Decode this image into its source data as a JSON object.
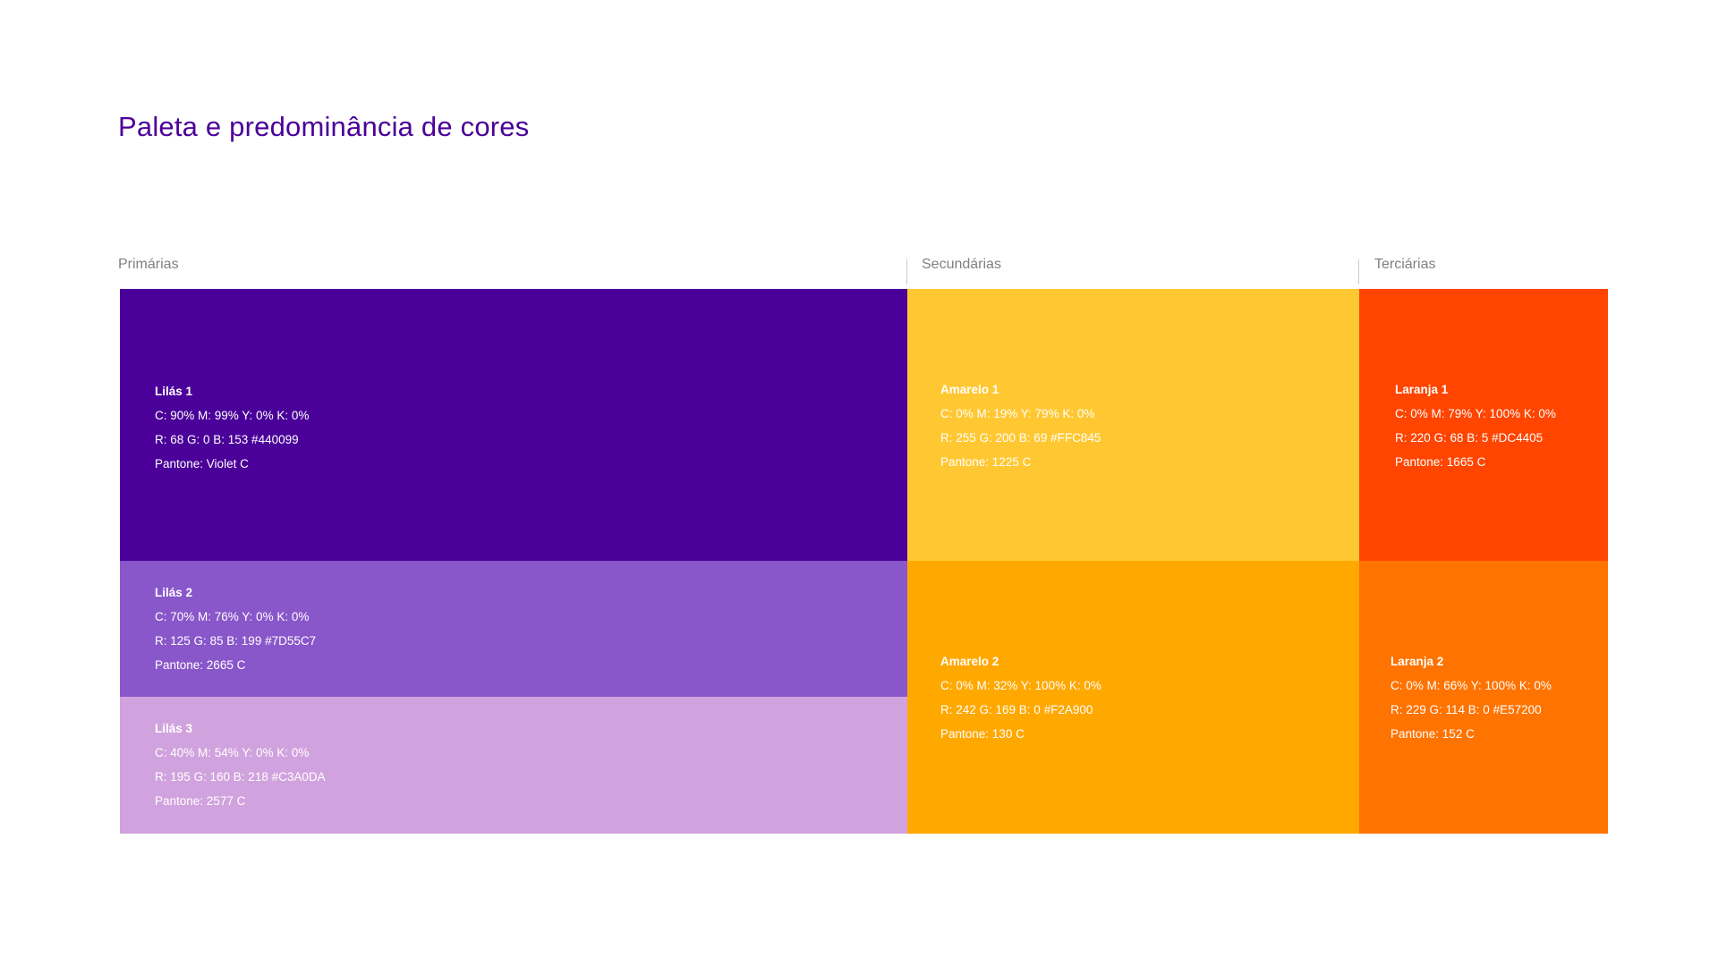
{
  "title": "Paleta e predominância de cores",
  "groups": {
    "primarias": "Primárias",
    "secundarias": "Secundárias",
    "terciarias": "Terciárias"
  },
  "swatches": {
    "lilas1": {
      "color": "#4A0099",
      "text_color": "#ffffff",
      "name": "Lilás 1",
      "cmyk": "C: 90%  M: 99%  Y: 0%  K: 0%",
      "rgb": "R: 68  G: 0  B: 153  #440099",
      "pantone": "Pantone: Violet C"
    },
    "lilas2": {
      "color": "#8957CA",
      "text_color": "#ffffff",
      "name": "Lilás 2",
      "cmyk": "C: 70%  M: 76%  Y: 0%  K: 0%",
      "rgb": "R: 125  G: 85  B: 199  #7D55C7",
      "pantone": "Pantone: 2665 C"
    },
    "lilas3": {
      "color": "#D1A3DE",
      "text_color": "#ffffff",
      "name": "Lilás 3",
      "cmyk": "C: 40%  M: 54%  Y: 0%  K: 0%",
      "rgb": "R: 195  G: 160  B: 218  #C3A0DA",
      "pantone": "Pantone: 2577 C"
    },
    "amarelo1": {
      "color": "#FFC832",
      "text_color": "#ffffff",
      "name": "Amarelo 1",
      "cmyk": "C: 0%  M: 19%  Y: 79%  K: 0%",
      "rgb": "R: 255  G: 200  B: 69  #FFC845",
      "pantone": "Pantone: 1225 C"
    },
    "amarelo2": {
      "color": "#FFA800",
      "text_color": "#ffffff",
      "name": "Amarelo 2",
      "cmyk": "C: 0%  M: 32%  Y: 100%  K: 0%",
      "rgb": "R: 242  G: 169  B: 0  #F2A900",
      "pantone": "Pantone: 130 C"
    },
    "laranja1": {
      "color": "#FF4500",
      "text_color": "#ffffff",
      "name": "Laranja 1",
      "cmyk": "C: 0%  M: 79%  Y: 100%  K: 0%",
      "rgb": "R: 220  G: 68  B: 5  #DC4405",
      "pantone": "Pantone: 1665 C"
    },
    "laranja2": {
      "color": "#FF7300",
      "text_color": "#ffffff",
      "name": "Laranja 2",
      "cmyk": "C: 0%  M: 66%  Y: 100%  K: 0%",
      "rgb": "R: 229  G: 114  B: 0  #E57200",
      "pantone": "Pantone: 152 C"
    }
  }
}
